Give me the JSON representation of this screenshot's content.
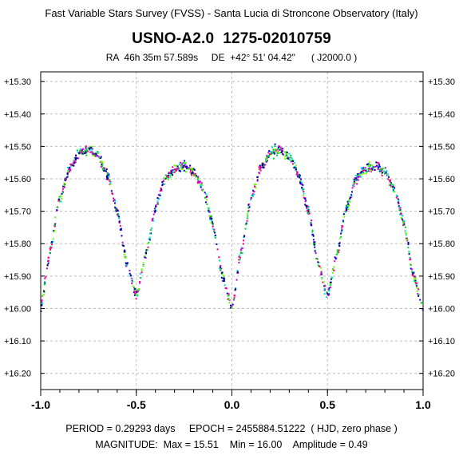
{
  "header": {
    "survey": "Fast Variable Stars Survey (FVSS) - Santa Lucia di Stroncone Observatory (Italy)",
    "star_id": "USNO-A2.0  1275-02010759",
    "coords": "RA  46h 35m 57.589s     DE  +42° 51' 04.42\"      ( J2000.0 )"
  },
  "footer": {
    "period_line": "PERIOD = 0.29293 days     EPOCH = 2455884.51222  ( HJD, zero phase )",
    "magnitude_line": "MAGNITUDE:  Max = 15.51    Min = 16.00    Amplitude = 0.49"
  },
  "colors": {
    "grid": "#bdbdbd",
    "axis": "#000000",
    "points": [
      "#ff0080",
      "#00cc44",
      "#0000cc",
      "#00dddd",
      "#cc00cc",
      "#66ff00",
      "#000080"
    ]
  },
  "chart_data": {
    "type": "scatter",
    "title": "USNO-A2.0  1275-02010759",
    "xlim": [
      -1.0,
      1.0
    ],
    "ylim": [
      16.25,
      15.27
    ],
    "y_inverted": true,
    "grid": true,
    "x_ticks": [
      -1.0,
      -0.5,
      0.0,
      0.5,
      1.0
    ],
    "x_tick_labels": [
      "-1.0",
      "-0.5",
      "0.0",
      "0.5",
      "1.0"
    ],
    "y_ticks": [
      15.3,
      15.4,
      15.5,
      15.6,
      15.7,
      15.8,
      15.9,
      16.0,
      16.1,
      16.2
    ],
    "y_tick_labels": [
      "+15.30",
      "+15.40",
      "+15.50",
      "+15.60",
      "+15.70",
      "+15.80",
      "+15.90",
      "+16.00",
      "+16.10",
      "+16.20"
    ],
    "phase_folded_curve": {
      "period_days": 0.29293,
      "epoch_hjd": 2455884.51222,
      "mag_max": 15.51,
      "mag_min": 16.0,
      "amplitude": 0.49,
      "secondary_max": 15.56,
      "secondary_min": 15.96,
      "primary_min_phase": 0.0,
      "secondary_min_phase": 0.5,
      "primary_max_phase": 0.25,
      "secondary_max_phase": 0.75
    },
    "phase_mag_profile": [
      {
        "phase": 0.0,
        "mag": 16.0
      },
      {
        "phase": 0.05,
        "mag": 15.82
      },
      {
        "phase": 0.1,
        "mag": 15.66
      },
      {
        "phase": 0.15,
        "mag": 15.57
      },
      {
        "phase": 0.2,
        "mag": 15.52
      },
      {
        "phase": 0.25,
        "mag": 15.51
      },
      {
        "phase": 0.3,
        "mag": 15.53
      },
      {
        "phase": 0.35,
        "mag": 15.59
      },
      {
        "phase": 0.4,
        "mag": 15.7
      },
      {
        "phase": 0.45,
        "mag": 15.86
      },
      {
        "phase": 0.5,
        "mag": 15.96
      },
      {
        "phase": 0.55,
        "mag": 15.83
      },
      {
        "phase": 0.6,
        "mag": 15.69
      },
      {
        "phase": 0.65,
        "mag": 15.6
      },
      {
        "phase": 0.7,
        "mag": 15.57
      },
      {
        "phase": 0.75,
        "mag": 15.56
      },
      {
        "phase": 0.8,
        "mag": 15.58
      },
      {
        "phase": 0.85,
        "mag": 15.63
      },
      {
        "phase": 0.9,
        "mag": 15.74
      },
      {
        "phase": 0.95,
        "mag": 15.9
      },
      {
        "phase": 1.0,
        "mag": 16.0
      }
    ]
  }
}
